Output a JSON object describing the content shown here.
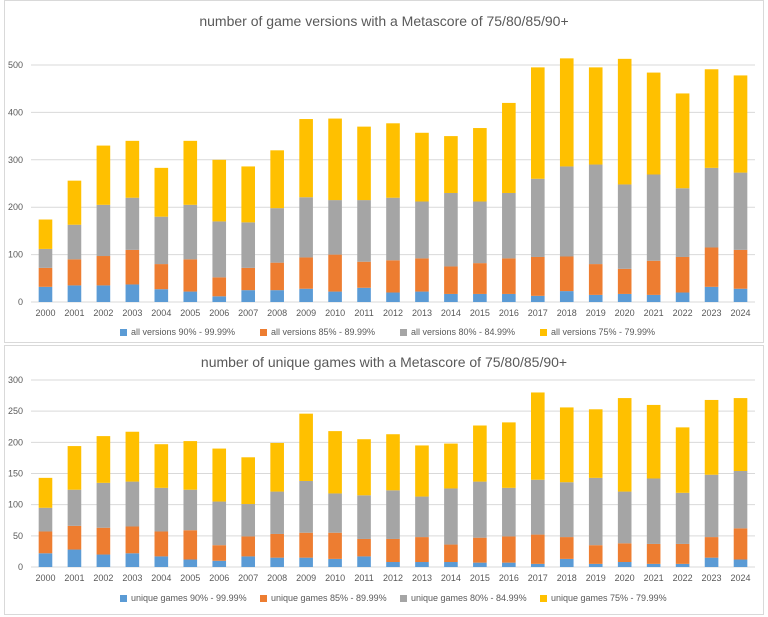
{
  "chart_data": [
    {
      "type": "bar",
      "stacked": true,
      "title": "number of game versions with a Metascore of 75/80/85/90+",
      "categories": [
        "2000",
        "2001",
        "2002",
        "2003",
        "2004",
        "2005",
        "2006",
        "2007",
        "2008",
        "2009",
        "2010",
        "2011",
        "2012",
        "2013",
        "2014",
        "2015",
        "2016",
        "2017",
        "2018",
        "2019",
        "2020",
        "2021",
        "2022",
        "2023",
        "2024"
      ],
      "ylim": [
        0,
        500
      ],
      "yticks": [
        0,
        100,
        200,
        300,
        400,
        500
      ],
      "grid": true,
      "legend_position": "bottom",
      "series": [
        {
          "name": "all versions 90% - 99.99%",
          "color": "#5b9bd5",
          "values": [
            32,
            35,
            35,
            37,
            27,
            22,
            12,
            25,
            25,
            28,
            22,
            30,
            20,
            22,
            17,
            17,
            17,
            13,
            23,
            15,
            17,
            15,
            20,
            32,
            28
          ]
        },
        {
          "name": "all versions 85% - 89.99%",
          "color": "#ed7d31",
          "values": [
            40,
            55,
            62,
            73,
            53,
            68,
            40,
            47,
            58,
            66,
            78,
            55,
            68,
            70,
            58,
            65,
            75,
            82,
            73,
            65,
            53,
            72,
            75,
            83,
            82
          ]
        },
        {
          "name": "all versions 80% - 84.99%",
          "color": "#a5a5a5",
          "values": [
            40,
            73,
            108,
            110,
            100,
            115,
            118,
            96,
            115,
            127,
            115,
            130,
            132,
            120,
            155,
            130,
            138,
            165,
            190,
            210,
            178,
            182,
            145,
            168,
            163
          ]
        },
        {
          "name": "all versions 75% - 79.99%",
          "color": "#ffc000",
          "values": [
            62,
            93,
            125,
            120,
            103,
            135,
            130,
            118,
            122,
            165,
            172,
            155,
            157,
            145,
            120,
            155,
            190,
            235,
            228,
            205,
            265,
            215,
            200,
            208,
            205
          ]
        }
      ]
    },
    {
      "type": "bar",
      "stacked": true,
      "title": "number of unique games with a Metascore of 75/80/85/90+",
      "categories": [
        "2000",
        "2001",
        "2002",
        "2003",
        "2004",
        "2005",
        "2006",
        "2007",
        "2008",
        "2009",
        "2010",
        "2011",
        "2012",
        "2013",
        "2014",
        "2015",
        "2016",
        "2017",
        "2018",
        "2019",
        "2020",
        "2021",
        "2022",
        "2023",
        "2024"
      ],
      "ylim": [
        0,
        300
      ],
      "yticks": [
        0,
        50,
        100,
        150,
        200,
        250,
        300
      ],
      "grid": true,
      "legend_position": "bottom",
      "series": [
        {
          "name": "unique games 90% - 99.99%",
          "color": "#5b9bd5",
          "values": [
            22,
            28,
            20,
            22,
            17,
            12,
            10,
            17,
            15,
            15,
            13,
            17,
            8,
            8,
            8,
            7,
            7,
            5,
            13,
            5,
            8,
            5,
            5,
            15,
            12
          ]
        },
        {
          "name": "unique games 85% - 89.99%",
          "color": "#ed7d31",
          "values": [
            35,
            38,
            43,
            43,
            40,
            47,
            25,
            32,
            38,
            40,
            42,
            28,
            37,
            40,
            28,
            40,
            42,
            47,
            35,
            30,
            30,
            32,
            32,
            33,
            50
          ]
        },
        {
          "name": "unique games 80% - 84.99%",
          "color": "#a5a5a5",
          "values": [
            38,
            58,
            72,
            72,
            70,
            65,
            70,
            52,
            68,
            83,
            63,
            70,
            78,
            65,
            90,
            90,
            78,
            88,
            88,
            108,
            83,
            105,
            82,
            100,
            92
          ]
        },
        {
          "name": "unique games 75% - 79.99%",
          "color": "#ffc000",
          "values": [
            48,
            70,
            75,
            80,
            70,
            78,
            85,
            75,
            78,
            108,
            100,
            90,
            90,
            82,
            72,
            90,
            105,
            140,
            120,
            110,
            150,
            118,
            105,
            120,
            117
          ]
        }
      ]
    }
  ]
}
